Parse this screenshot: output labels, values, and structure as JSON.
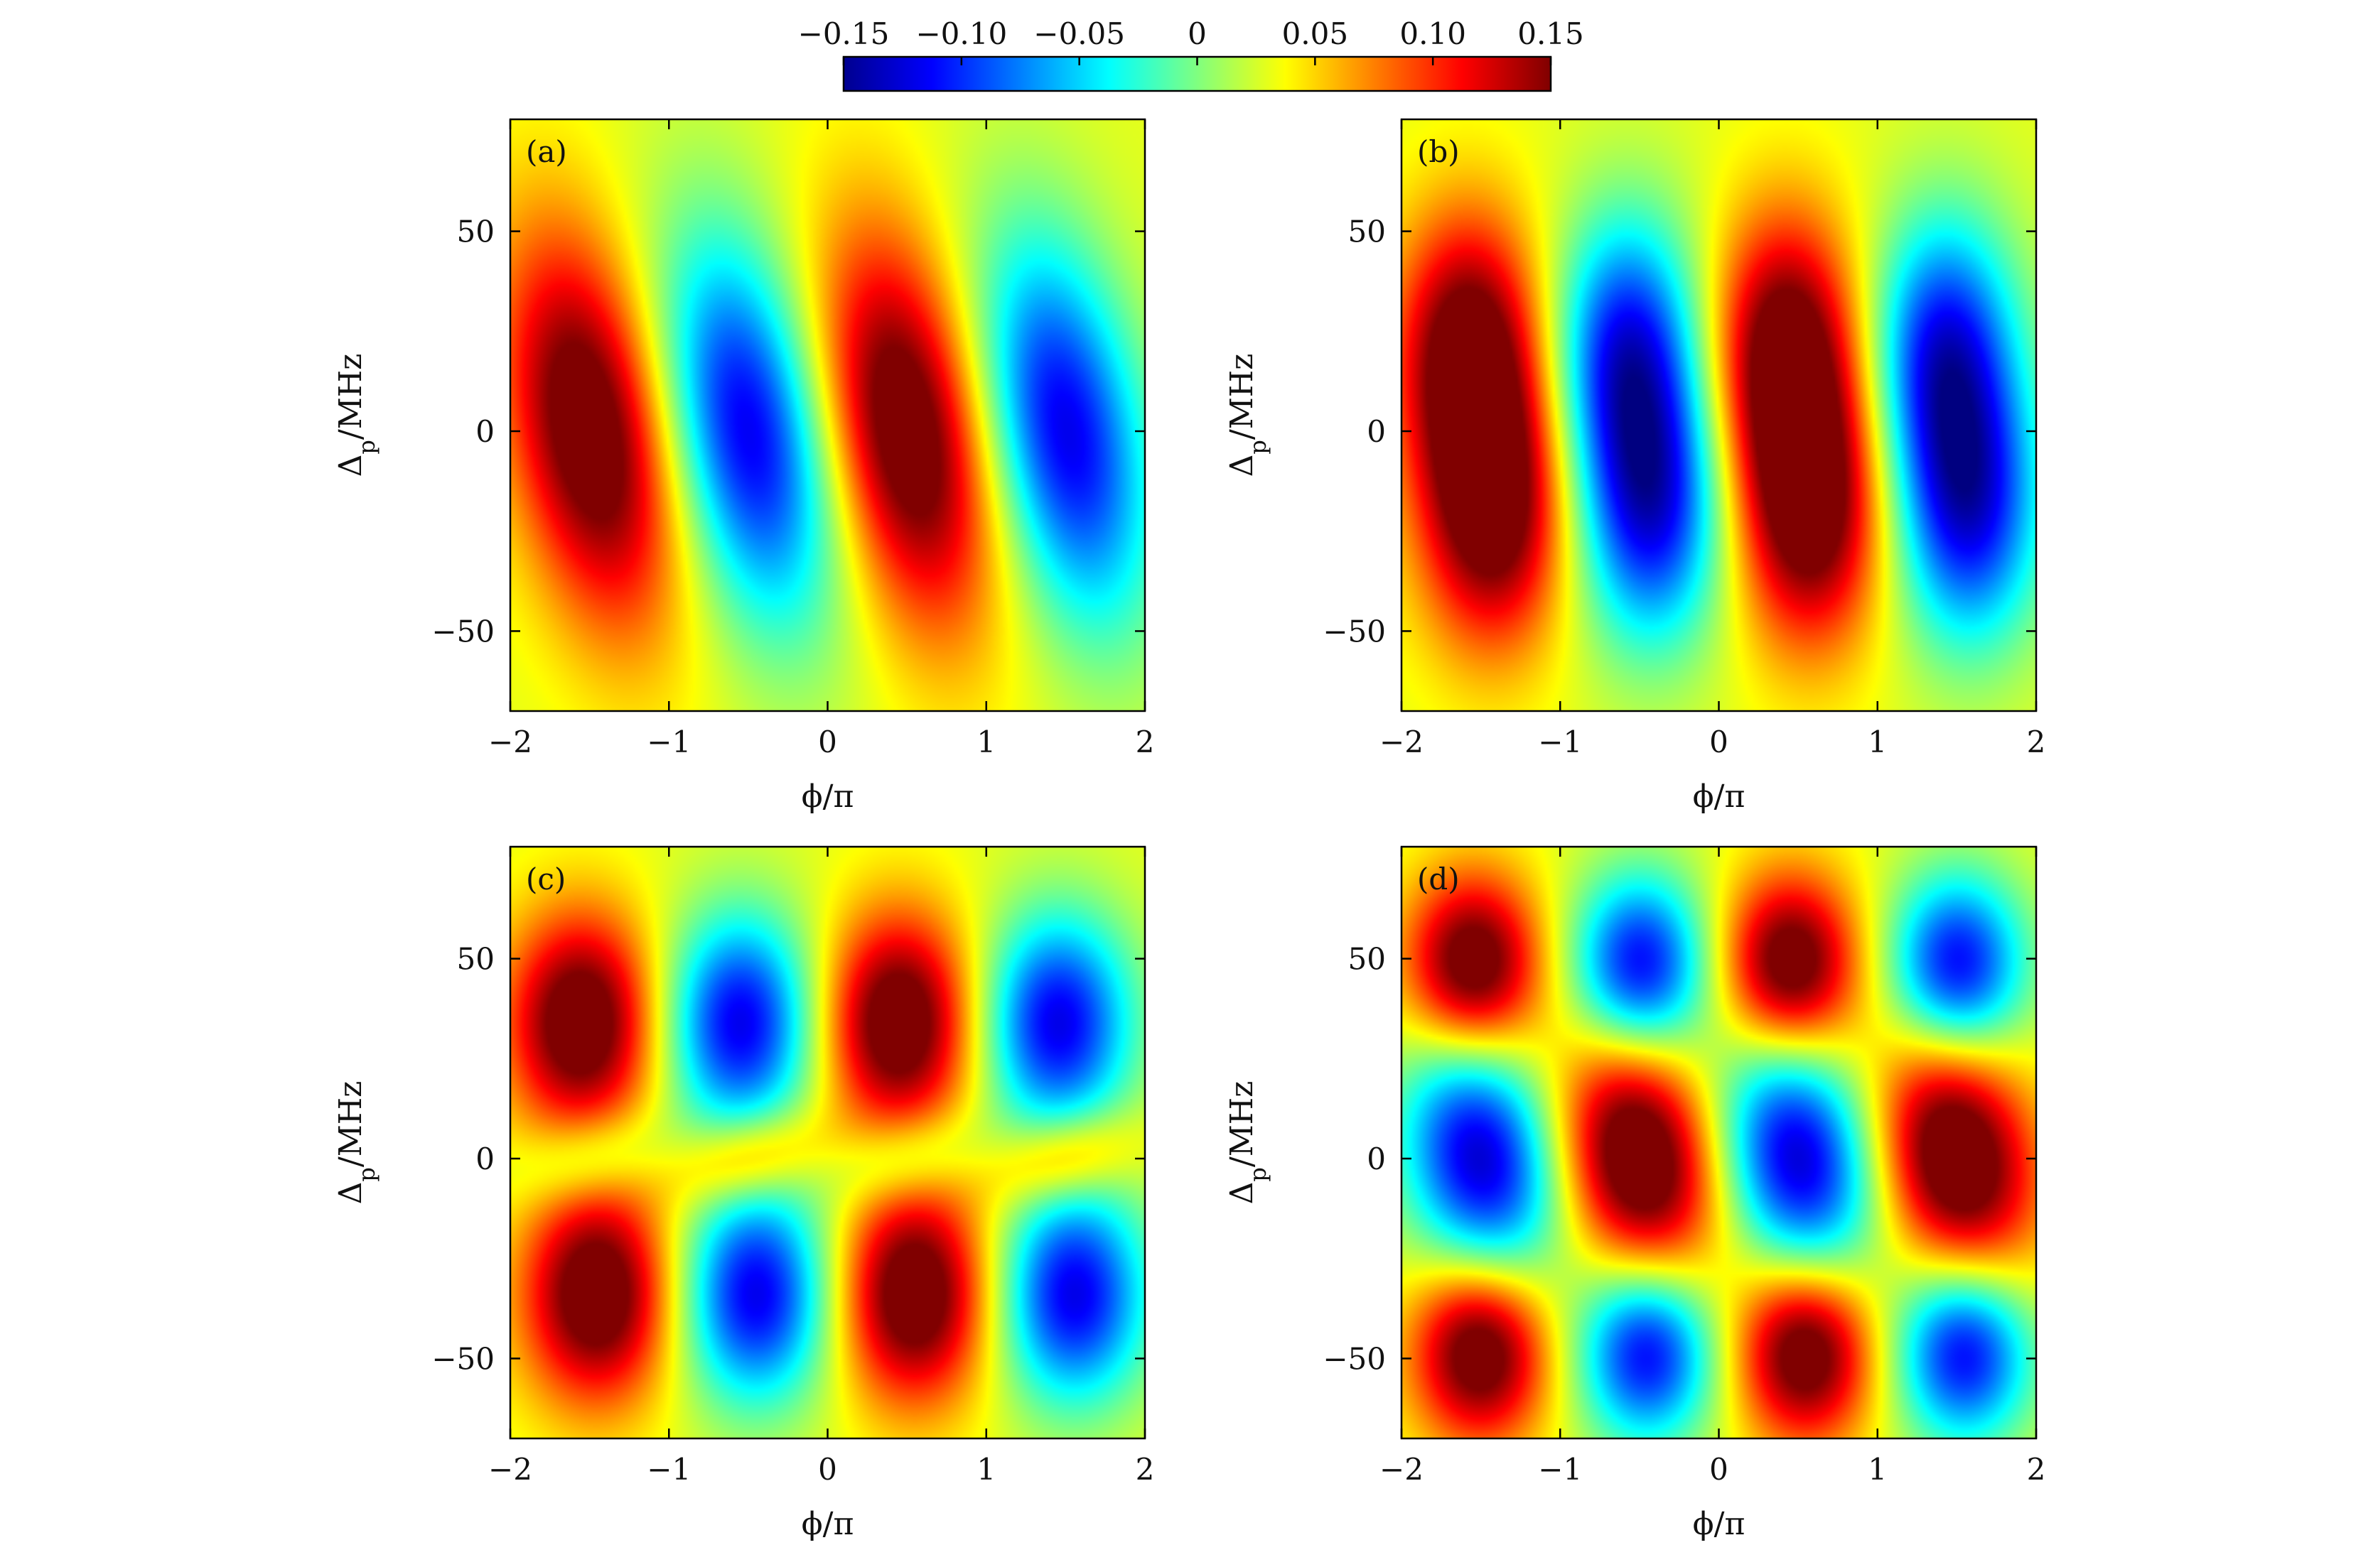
{
  "chart_data": {
    "type": "heatmap",
    "colormap": "jet",
    "colorbar": {
      "range": [
        -0.15,
        0.15
      ],
      "ticks": [
        -0.15,
        -0.1,
        -0.05,
        0,
        0.05,
        0.1,
        0.15
      ],
      "tick_labels": [
        "−0.15",
        "−0.10",
        "−0.05",
        "0",
        "0.05",
        "0.10",
        "0.15"
      ],
      "placement": "top-center",
      "orientation": "horizontal"
    },
    "panels": [
      {
        "id": "a",
        "tag": "(a)",
        "xlabel": "ϕ/π",
        "ylabel_main": "Δ",
        "ylabel_sub": "p",
        "ylabel_rest": "/MHz",
        "xlim": [
          -2,
          2
        ],
        "ylim": [
          -70,
          78
        ],
        "xticks": [
          -2,
          -1,
          0,
          1,
          2
        ],
        "xtick_labels": [
          "−2",
          "−1",
          "0",
          "1",
          "2"
        ],
        "yticks": [
          50,
          0,
          -50
        ],
        "ytick_labels": [
          "50",
          "0",
          "−50"
        ],
        "grid": false,
        "features": [
          {
            "x": -1.5,
            "y": 0,
            "amp": 0.15,
            "sx": 0.35,
            "sy": 34,
            "tilt": -0.004
          },
          {
            "x": -0.5,
            "y": 0,
            "amp": -0.15,
            "sx": 0.35,
            "sy": 34,
            "tilt": -0.004
          },
          {
            "x": 0.5,
            "y": 0,
            "amp": 0.15,
            "sx": 0.35,
            "sy": 34,
            "tilt": -0.004
          },
          {
            "x": 1.5,
            "y": 0,
            "amp": -0.15,
            "sx": 0.35,
            "sy": 34,
            "tilt": -0.004
          }
        ]
      },
      {
        "id": "b",
        "tag": "(b)",
        "xlabel": "ϕ/π",
        "ylabel_main": "Δ",
        "ylabel_sub": "p",
        "ylabel_rest": "/MHz",
        "xlim": [
          -2,
          2
        ],
        "ylim": [
          -70,
          78
        ],
        "xticks": [
          -2,
          -1,
          0,
          1,
          2
        ],
        "xtick_labels": [
          "−2",
          "−1",
          "0",
          "1",
          "2"
        ],
        "yticks": [
          50,
          0,
          -50
        ],
        "ytick_labels": [
          "50",
          "0",
          "−50"
        ],
        "grid": false,
        "features": [
          {
            "x": -1.58,
            "y": 20,
            "amp": 0.14,
            "sx": 0.32,
            "sy": 24,
            "tilt": 0
          },
          {
            "x": -1.42,
            "y": -20,
            "amp": 0.14,
            "sx": 0.32,
            "sy": 24,
            "tilt": 0
          },
          {
            "x": -0.58,
            "y": 20,
            "amp": -0.14,
            "sx": 0.32,
            "sy": 24,
            "tilt": 0
          },
          {
            "x": -0.42,
            "y": -20,
            "amp": -0.14,
            "sx": 0.32,
            "sy": 24,
            "tilt": 0
          },
          {
            "x": 0.42,
            "y": 20,
            "amp": 0.14,
            "sx": 0.32,
            "sy": 24,
            "tilt": 0
          },
          {
            "x": 0.58,
            "y": -20,
            "amp": 0.14,
            "sx": 0.32,
            "sy": 24,
            "tilt": 0
          },
          {
            "x": 1.42,
            "y": 20,
            "amp": -0.14,
            "sx": 0.32,
            "sy": 24,
            "tilt": 0
          },
          {
            "x": 1.58,
            "y": -20,
            "amp": -0.14,
            "sx": 0.32,
            "sy": 24,
            "tilt": 0
          }
        ]
      },
      {
        "id": "c",
        "tag": "(c)",
        "xlabel": "ϕ/π",
        "ylabel_main": "Δ",
        "ylabel_sub": "p",
        "ylabel_rest": "/MHz",
        "xlim": [
          -2,
          2
        ],
        "ylim": [
          -70,
          78
        ],
        "xticks": [
          -2,
          -1,
          0,
          1,
          2
        ],
        "xtick_labels": [
          "−2",
          "−1",
          "0",
          "1",
          "2"
        ],
        "yticks": [
          50,
          0,
          -50
        ],
        "ytick_labels": [
          "50",
          "0",
          "−50"
        ],
        "grid": false,
        "features": [
          {
            "x": -1.55,
            "y": 34,
            "amp": 0.15,
            "sx": 0.33,
            "sy": 19,
            "tilt": 0
          },
          {
            "x": -0.55,
            "y": 34,
            "amp": -0.15,
            "sx": 0.33,
            "sy": 19,
            "tilt": 0
          },
          {
            "x": 0.45,
            "y": 34,
            "amp": 0.15,
            "sx": 0.33,
            "sy": 19,
            "tilt": 0
          },
          {
            "x": 1.45,
            "y": 34,
            "amp": -0.15,
            "sx": 0.33,
            "sy": 19,
            "tilt": 0
          },
          {
            "x": -1.45,
            "y": -34,
            "amp": 0.15,
            "sx": 0.33,
            "sy": 19,
            "tilt": 0
          },
          {
            "x": -0.45,
            "y": -34,
            "amp": -0.15,
            "sx": 0.33,
            "sy": 19,
            "tilt": 0
          },
          {
            "x": 0.55,
            "y": -34,
            "amp": 0.15,
            "sx": 0.33,
            "sy": 19,
            "tilt": 0
          },
          {
            "x": 1.55,
            "y": -34,
            "amp": -0.15,
            "sx": 0.33,
            "sy": 19,
            "tilt": 0
          },
          {
            "x": -1.5,
            "y": 0,
            "amp": -0.05,
            "sx": 0.3,
            "sy": 8,
            "tilt": 0.01
          },
          {
            "x": -0.5,
            "y": 0,
            "amp": 0.07,
            "sx": 0.3,
            "sy": 8,
            "tilt": 0.01
          },
          {
            "x": 0.5,
            "y": 0,
            "amp": -0.05,
            "sx": 0.3,
            "sy": 8,
            "tilt": 0.01
          },
          {
            "x": 1.5,
            "y": 0,
            "amp": 0.07,
            "sx": 0.3,
            "sy": 8,
            "tilt": 0.01
          }
        ]
      },
      {
        "id": "d",
        "tag": "(d)",
        "xlabel": "ϕ/π",
        "ylabel_main": "Δ",
        "ylabel_sub": "p",
        "ylabel_rest": "/MHz",
        "xlim": [
          -2,
          2
        ],
        "ylim": [
          -70,
          78
        ],
        "xticks": [
          -2,
          -1,
          0,
          1,
          2
        ],
        "xtick_labels": [
          "−2",
          "−1",
          "0",
          "1",
          "2"
        ],
        "yticks": [
          50,
          0,
          -50
        ],
        "ytick_labels": [
          "50",
          "0",
          "−50"
        ],
        "grid": false,
        "features": [
          {
            "x": -1.55,
            "y": 48,
            "amp": 0.15,
            "sx": 0.3,
            "sy": 16,
            "tilt": 0
          },
          {
            "x": -0.5,
            "y": 48,
            "amp": -0.15,
            "sx": 0.3,
            "sy": 16,
            "tilt": 0
          },
          {
            "x": 0.45,
            "y": 48,
            "amp": 0.15,
            "sx": 0.3,
            "sy": 16,
            "tilt": 0
          },
          {
            "x": 1.5,
            "y": 48,
            "amp": -0.15,
            "sx": 0.3,
            "sy": 16,
            "tilt": 0
          },
          {
            "x": -1.5,
            "y": -48,
            "amp": 0.15,
            "sx": 0.3,
            "sy": 16,
            "tilt": 0
          },
          {
            "x": -0.45,
            "y": -48,
            "amp": -0.15,
            "sx": 0.3,
            "sy": 16,
            "tilt": 0
          },
          {
            "x": 0.55,
            "y": -48,
            "amp": 0.15,
            "sx": 0.3,
            "sy": 16,
            "tilt": 0
          },
          {
            "x": 1.55,
            "y": -48,
            "amp": -0.15,
            "sx": 0.3,
            "sy": 16,
            "tilt": 0
          },
          {
            "x": -1.5,
            "y": 0,
            "amp": -0.16,
            "sx": 0.34,
            "sy": 22,
            "tilt": -0.003
          },
          {
            "x": -0.5,
            "y": 0,
            "amp": 0.16,
            "sx": 0.34,
            "sy": 22,
            "tilt": -0.003
          },
          {
            "x": 0.5,
            "y": 0,
            "amp": -0.16,
            "sx": 0.34,
            "sy": 22,
            "tilt": -0.003
          },
          {
            "x": 1.5,
            "y": 0,
            "amp": 0.16,
            "sx": 0.34,
            "sy": 22,
            "tilt": -0.003
          }
        ]
      }
    ]
  }
}
